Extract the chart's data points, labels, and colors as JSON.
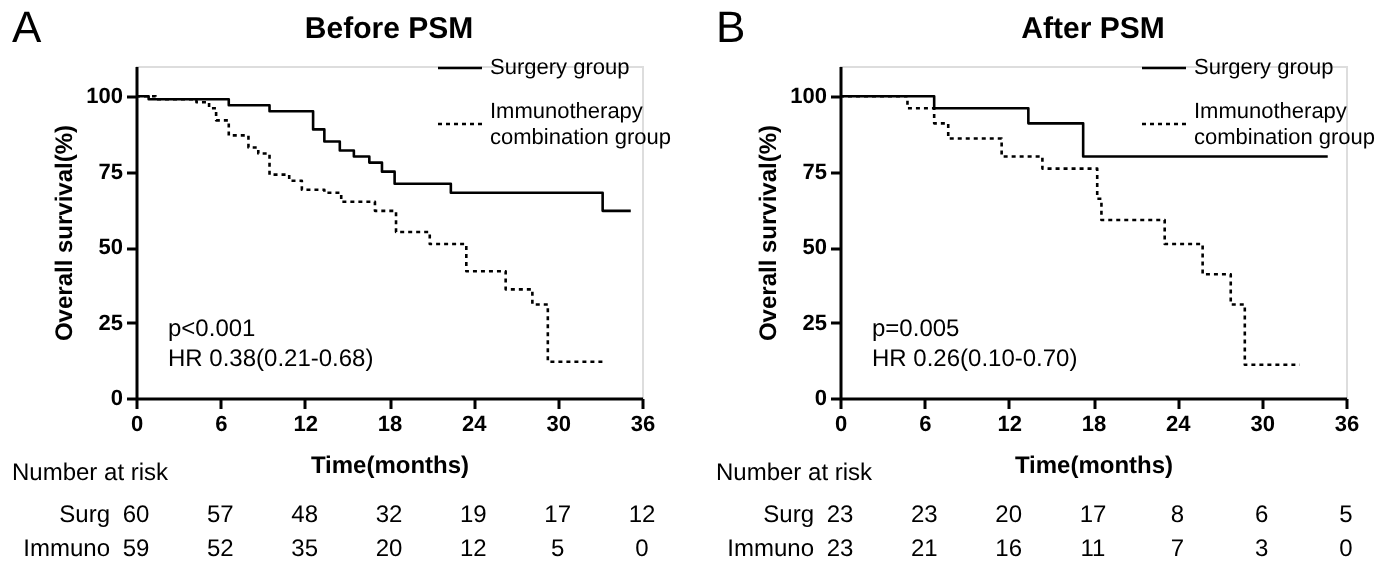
{
  "chart_data": [
    {
      "type": "step",
      "title": "Before PSM",
      "xlabel": "Time(months)",
      "ylabel": "Overall survival(%)",
      "xlim": [
        0,
        36
      ],
      "xticks": [
        0,
        6,
        12,
        18,
        24,
        30,
        36
      ],
      "ylim": [
        0,
        110
      ],
      "yticks": [
        0,
        25,
        50,
        75,
        100
      ],
      "grid": false,
      "legend": "top right",
      "series": [
        {
          "name": "Surgery group",
          "color": "#000000",
          "line_style": "solid",
          "x": [
            0,
            0.9,
            6.6,
            9.5,
            12.6,
            13.4,
            14.5,
            15.5,
            16.6,
            17.5,
            18.4,
            22.4,
            33.2,
            35.2
          ],
          "values": [
            100,
            99,
            97,
            95,
            89,
            85,
            82,
            80,
            78,
            75,
            71,
            68,
            62,
            62
          ]
        },
        {
          "name": "Immunotherapy combination group",
          "color": "#000000",
          "line_style": "dotted",
          "x": [
            0,
            1.4,
            4.3,
            5.2,
            5.7,
            6.6,
            8,
            8.7,
            9.5,
            10.9,
            11.8,
            13.4,
            14.6,
            17,
            18.5,
            20.9,
            23.5,
            26.3,
            28.2,
            29.3,
            33.2
          ],
          "values": [
            100,
            99,
            98,
            96,
            92,
            87,
            83,
            81,
            74,
            72,
            69,
            68,
            65,
            62,
            55,
            51,
            42,
            36,
            31,
            12,
            12
          ]
        }
      ],
      "annotations": [
        "A",
        "p<0.001",
        "HR 0.38(0.21-0.68)",
        "Number at risk",
        "Surg",
        "60",
        "57",
        "48",
        "32",
        "19",
        "17",
        "12",
        "Immuno",
        "59",
        "52",
        "35",
        "20",
        "12",
        "5",
        "0"
      ]
    },
    {
      "type": "step",
      "title": "After PSM",
      "xlabel": "Time(months)",
      "ylabel": "Overall survival(%)",
      "xlim": [
        0,
        36
      ],
      "xticks": [
        0,
        6,
        12,
        18,
        24,
        30,
        36
      ],
      "ylim": [
        0,
        110
      ],
      "yticks": [
        0,
        25,
        50,
        75,
        100
      ],
      "grid": false,
      "legend": "top right",
      "series": [
        {
          "name": "Surgery group",
          "color": "#000000",
          "line_style": "solid",
          "x": [
            0,
            6.7,
            13.4,
            17.3,
            34.7
          ],
          "values": [
            100,
            96,
            91,
            80,
            80
          ]
        },
        {
          "name": "Immunotherapy combination group",
          "color": "#000000",
          "line_style": "dotted",
          "x": [
            0,
            4.8,
            6.7,
            7.7,
            11.5,
            14.4,
            18.3,
            18.6,
            23.1,
            25.8,
            27.8,
            28.8,
            32.7
          ],
          "values": [
            100,
            96,
            91,
            86,
            80,
            76,
            66,
            59,
            51,
            41,
            31,
            11,
            11
          ]
        }
      ],
      "annotations": [
        "B",
        "p=0.005",
        "HR 0.26(0.10-0.70)",
        "Number at risk",
        "Surg",
        "23",
        "23",
        "20",
        "17",
        "8",
        "6",
        "5",
        "Immuno",
        "23",
        "21",
        "16",
        "11",
        "7",
        "3",
        "0"
      ]
    }
  ]
}
